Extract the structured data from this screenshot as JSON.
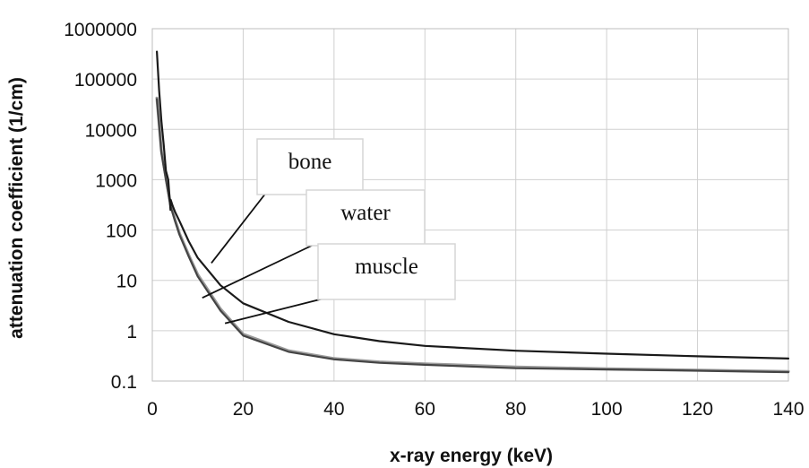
{
  "chart_data": {
    "type": "line",
    "title": "",
    "xlabel": "x-ray energy (keV)",
    "ylabel": "attenuation coefficient (1/cm)",
    "xlim": [
      0,
      140
    ],
    "ylim": [
      0.1,
      1000000
    ],
    "yscale": "log",
    "grid": true,
    "x_ticks": [
      "0",
      "20",
      "40",
      "60",
      "80",
      "100",
      "120",
      "140"
    ],
    "y_ticks": [
      "0.1",
      "1",
      "10",
      "100",
      "1000",
      "10000",
      "100000",
      "1000000"
    ],
    "series": [
      {
        "name": "bone",
        "color": "#1a1a1a",
        "x": [
          1,
          1.5,
          2,
          2.5,
          3,
          3.5,
          4,
          4.04,
          4.5,
          5,
          6,
          8,
          10,
          15,
          20,
          30,
          40,
          50,
          60,
          80,
          100,
          120,
          140
        ],
        "y": [
          350000,
          60000,
          15000,
          5000,
          1500,
          1000,
          250,
          400,
          300,
          230,
          150,
          60,
          28,
          8,
          3.5,
          1.5,
          0.85,
          0.62,
          0.5,
          0.4,
          0.35,
          0.31,
          0.28
        ]
      },
      {
        "name": "water",
        "color": "#444444",
        "x": [
          1,
          1.5,
          2,
          3,
          4,
          5,
          6,
          8,
          10,
          15,
          20,
          30,
          40,
          50,
          60,
          80,
          100,
          120,
          140
        ],
        "y": [
          40000,
          12000,
          3500,
          1000,
          300,
          150,
          80,
          30,
          12,
          2.5,
          0.8,
          0.38,
          0.27,
          0.23,
          0.21,
          0.18,
          0.17,
          0.16,
          0.15
        ]
      },
      {
        "name": "muscle",
        "color": "#9a9a9a",
        "x": [
          1,
          1.5,
          2,
          3,
          4,
          5,
          6,
          8,
          10,
          15,
          20,
          30,
          40,
          50,
          60,
          80,
          100,
          120,
          140
        ],
        "y": [
          42000,
          13000,
          3800,
          1100,
          330,
          160,
          85,
          32,
          13,
          2.7,
          0.85,
          0.4,
          0.28,
          0.24,
          0.22,
          0.19,
          0.175,
          0.165,
          0.155
        ]
      }
    ],
    "annotations": [
      {
        "text": "bone",
        "series": "bone",
        "x": 13,
        "y": 22
      },
      {
        "text": "water",
        "series": "water",
        "x": 11,
        "y": 4.5
      },
      {
        "text": "muscle",
        "series": "muscle",
        "x": 16,
        "y": 1.4
      }
    ]
  }
}
